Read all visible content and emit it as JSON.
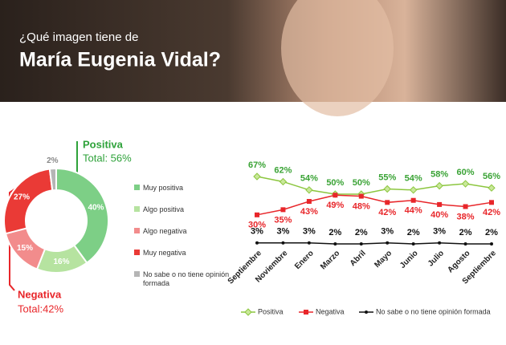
{
  "header": {
    "subtitle": "¿Qué imagen tiene de",
    "title": "María Eugenia Vidal?"
  },
  "chart_data": [
    {
      "type": "donut",
      "categories": [
        "Muy positiva",
        "Algo positiva",
        "Algo negativa",
        "Muy negativa",
        "No sabe o no tiene opinión formada"
      ],
      "values": [
        40,
        16,
        15,
        27,
        2
      ],
      "value_labels": [
        "40%",
        "16%",
        "15%",
        "27%",
        "2%"
      ],
      "colors": [
        "#7dcf86",
        "#b6e3a0",
        "#f28c8c",
        "#ea3a36",
        "#b5b5b5"
      ],
      "annotations": [
        {
          "title": "Positiva",
          "text": "Total: 56%",
          "color": "#2ea23a"
        },
        {
          "title": "Negativa",
          "text": "Total:42%",
          "color": "#e8262a"
        }
      ]
    },
    {
      "type": "line",
      "categories": [
        "Septiembre",
        "Noviembre",
        "Enero",
        "Marzo",
        "Abril",
        "Mayo",
        "Junio",
        "Julio",
        "Agosto",
        "Septiembre"
      ],
      "series": [
        {
          "name": "Positiva",
          "color": "#8cc63f",
          "label_color": "#3aa335",
          "marker": "diamond",
          "values": [
            67,
            62,
            54,
            50,
            50,
            55,
            54,
            58,
            60,
            56
          ],
          "value_labels": [
            "67%",
            "62%",
            "54%",
            "50%",
            "50%",
            "55%",
            "54%",
            "58%",
            "60%",
            "56%"
          ]
        },
        {
          "name": "Negativa",
          "color": "#e8262a",
          "label_color": "#e8262a",
          "marker": "square",
          "values": [
            30,
            35,
            43,
            49,
            48,
            42,
            44,
            40,
            38,
            42
          ],
          "value_labels": [
            "30%",
            "35%",
            "43%",
            "49%",
            "48%",
            "42%",
            "44%",
            "40%",
            "38%",
            "42%"
          ]
        },
        {
          "name": "No sabe o no tiene opinión formada",
          "color": "#111111",
          "label_color": "#111111",
          "marker": "circle",
          "values": [
            3,
            3,
            3,
            2,
            2,
            3,
            2,
            3,
            2,
            2
          ],
          "value_labels": [
            "3%",
            "3%",
            "3%",
            "2%",
            "2%",
            "3%",
            "2%",
            "3%",
            "2%",
            "2%"
          ]
        }
      ]
    }
  ]
}
